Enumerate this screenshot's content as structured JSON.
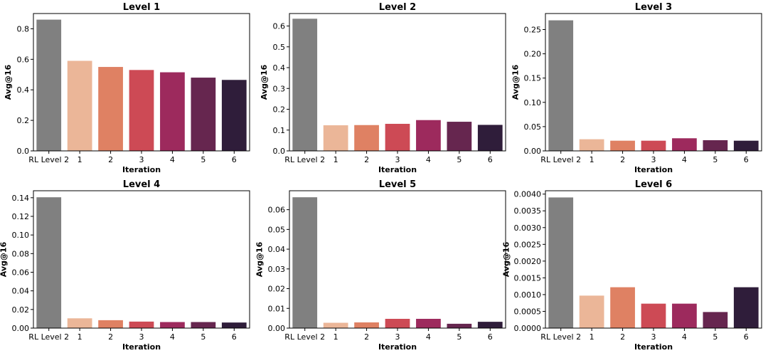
{
  "chart_data": [
    {
      "type": "bar",
      "title": "Level 1",
      "xlabel": "Iteration",
      "ylabel": "Avg@16",
      "categories": [
        "RL Level 2",
        "1",
        "2",
        "3",
        "4",
        "5",
        "6"
      ],
      "values": [
        0.86,
        0.59,
        0.55,
        0.53,
        0.515,
        0.48,
        0.465
      ],
      "ylim": [
        0,
        0.9
      ],
      "yticks": [
        "0.0",
        "0.2",
        "0.4",
        "0.6",
        "0.8"
      ],
      "ytick_values": [
        0,
        0.2,
        0.4,
        0.6,
        0.8
      ]
    },
    {
      "type": "bar",
      "title": "Level 2",
      "xlabel": "Iteration",
      "ylabel": "Avg@16",
      "categories": [
        "RL Level 2",
        "1",
        "2",
        "3",
        "4",
        "5",
        "6"
      ],
      "values": [
        0.635,
        0.123,
        0.124,
        0.13,
        0.148,
        0.14,
        0.125
      ],
      "ylim": [
        0,
        0.66
      ],
      "yticks": [
        "0.0",
        "0.1",
        "0.2",
        "0.3",
        "0.4",
        "0.5",
        "0.6"
      ],
      "ytick_values": [
        0,
        0.1,
        0.2,
        0.3,
        0.4,
        0.5,
        0.6
      ]
    },
    {
      "type": "bar",
      "title": "Level 3",
      "xlabel": "Iteration",
      "ylabel": "Avg@16",
      "categories": [
        "RL Level 2",
        "1",
        "2",
        "3",
        "4",
        "5",
        "6"
      ],
      "values": [
        0.269,
        0.024,
        0.021,
        0.021,
        0.026,
        0.022,
        0.021
      ],
      "ylim": [
        0,
        0.283
      ],
      "yticks": [
        "0.00",
        "0.05",
        "0.10",
        "0.15",
        "0.20",
        "0.25"
      ],
      "ytick_values": [
        0,
        0.05,
        0.1,
        0.15,
        0.2,
        0.25
      ]
    },
    {
      "type": "bar",
      "title": "Level 4",
      "xlabel": "Iteration",
      "ylabel": "Avg@16",
      "categories": [
        "RL Level 2",
        "1",
        "2",
        "3",
        "4",
        "5",
        "6"
      ],
      "values": [
        0.1405,
        0.0105,
        0.0085,
        0.007,
        0.0065,
        0.0065,
        0.006
      ],
      "ylim": [
        0,
        0.1475
      ],
      "yticks": [
        "0.00",
        "0.02",
        "0.04",
        "0.06",
        "0.08",
        "0.10",
        "0.12",
        "0.14"
      ],
      "ytick_values": [
        0,
        0.02,
        0.04,
        0.06,
        0.08,
        0.1,
        0.12,
        0.14
      ]
    },
    {
      "type": "bar",
      "title": "Level 5",
      "xlabel": "Iteration",
      "ylabel": "Avg@16",
      "categories": [
        "RL Level 2",
        "1",
        "2",
        "3",
        "4",
        "5",
        "6"
      ],
      "values": [
        0.0663,
        0.0027,
        0.0029,
        0.0047,
        0.0047,
        0.0022,
        0.0032
      ],
      "ylim": [
        0,
        0.0696
      ],
      "yticks": [
        "0.00",
        "0.01",
        "0.02",
        "0.03",
        "0.04",
        "0.05",
        "0.06"
      ],
      "ytick_values": [
        0,
        0.01,
        0.02,
        0.03,
        0.04,
        0.05,
        0.06
      ]
    },
    {
      "type": "bar",
      "title": "Level 6",
      "xlabel": "Iteration",
      "ylabel": "Avg@16",
      "categories": [
        "RL Level 2",
        "1",
        "2",
        "3",
        "4",
        "5",
        "6"
      ],
      "values": [
        0.0039,
        0.00097,
        0.00122,
        0.00073,
        0.00073,
        0.00048,
        0.00122
      ],
      "ylim": [
        0,
        0.0041
      ],
      "yticks": [
        "0.0000",
        "0.0005",
        "0.0010",
        "0.0015",
        "0.0020",
        "0.0025",
        "0.0030",
        "0.0035",
        "0.0040"
      ],
      "ytick_values": [
        0,
        0.0005,
        0.001,
        0.0015,
        0.002,
        0.0025,
        0.003,
        0.0035,
        0.004
      ]
    }
  ],
  "colors": {
    "baseline": "#808080",
    "iterations": [
      "#ebb698",
      "#df8163",
      "#cd4a55",
      "#9d2a5d",
      "#66264f",
      "#2f1d3a"
    ]
  }
}
